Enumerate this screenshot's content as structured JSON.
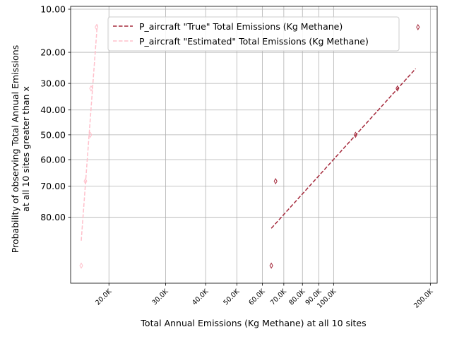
{
  "chart_data": {
    "type": "scatter",
    "xlabel": "Total Annual Emissions (Kg Methane) at all 10 sites",
    "ylabel_lines": [
      "Probability of observing Total Annual Emissions",
      "at all 10 sites greater than x"
    ],
    "x_scale": "log",
    "y_scale": "probit",
    "xlim": [
      15200,
      210000
    ],
    "ylim": [
      0.935,
      0.095
    ],
    "x_ticks": [
      {
        "value": 20000,
        "label": "20.0K"
      },
      {
        "value": 30000,
        "label": "30.0K"
      },
      {
        "value": 40000,
        "label": "40.0K"
      },
      {
        "value": 50000,
        "label": "50.0K"
      },
      {
        "value": 60000,
        "label": "60.0K"
      },
      {
        "value": 70000,
        "label": "70.0K"
      },
      {
        "value": 80000,
        "label": "80.0K"
      },
      {
        "value": 90000,
        "label": "90.0K"
      },
      {
        "value": 100000,
        "label": "100.0K"
      },
      {
        "value": 200000,
        "label": "200.0K"
      }
    ],
    "y_ticks": [
      {
        "value": 0.1,
        "label": "10.00"
      },
      {
        "value": 0.2,
        "label": "20.00"
      },
      {
        "value": 0.3,
        "label": "30.00"
      },
      {
        "value": 0.4,
        "label": "40.00"
      },
      {
        "value": 0.5,
        "label": "50.00"
      },
      {
        "value": 0.6,
        "label": "60.00"
      },
      {
        "value": 0.7,
        "label": "70.00"
      },
      {
        "value": 0.8,
        "label": "80.00"
      }
    ],
    "grid": true,
    "legend_position": "top-right",
    "series": [
      {
        "name": "P_aircraft \"True\" Total Emissions (Kg Methane)",
        "color": "#a52a3c",
        "points": [
          {
            "x": 64000,
            "y": 0.909
          },
          {
            "x": 66000,
            "y": 0.682
          },
          {
            "x": 117000,
            "y": 0.5
          },
          {
            "x": 158000,
            "y": 0.318
          },
          {
            "x": 183000,
            "y": 0.136
          }
        ],
        "fit_line": [
          {
            "x": 64000,
            "y": 0.83
          },
          {
            "x": 180000,
            "y": 0.25
          }
        ]
      },
      {
        "name": "P_aircraft \"Estimated\" Total Emissions (Kg Methane)",
        "color": "#ffc0cb",
        "points": [
          {
            "x": 16400,
            "y": 0.909
          },
          {
            "x": 16900,
            "y": 0.682
          },
          {
            "x": 17500,
            "y": 0.5
          },
          {
            "x": 17600,
            "y": 0.318
          },
          {
            "x": 18300,
            "y": 0.136
          }
        ],
        "fit_line": [
          {
            "x": 16400,
            "y": 0.86
          },
          {
            "x": 18400,
            "y": 0.13
          }
        ]
      }
    ]
  }
}
